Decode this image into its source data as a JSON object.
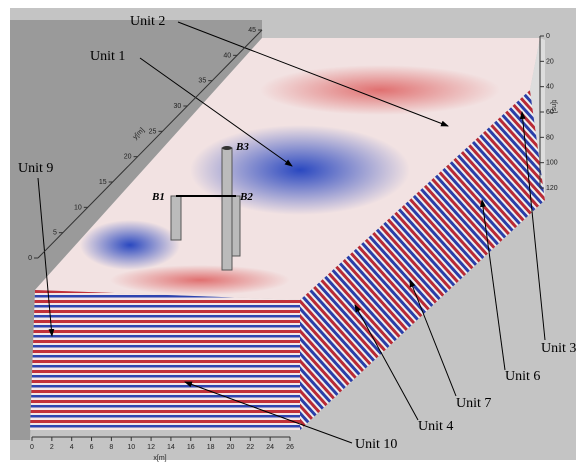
{
  "labels": [
    "Unit 1",
    "Unit 2",
    "Unit 3",
    "Unit 4",
    "Unit 6",
    "Unit 7",
    "Unit 9",
    "Unit 10"
  ],
  "boreholes": [
    "B1",
    "B2",
    "B3"
  ],
  "x_axis": {
    "label": "x[m]",
    "ticks": [
      0,
      2,
      4,
      6,
      8,
      10,
      12,
      14,
      16,
      18,
      20,
      22,
      24,
      26
    ]
  },
  "y_axis": {
    "label": "y[m]",
    "ticks": [
      0,
      5,
      10,
      15,
      20,
      25,
      30,
      35,
      40,
      45
    ]
  },
  "t_axis": {
    "label": "t[ns]",
    "ticks": [
      0,
      20,
      40,
      60,
      80,
      100,
      120
    ]
  }
}
